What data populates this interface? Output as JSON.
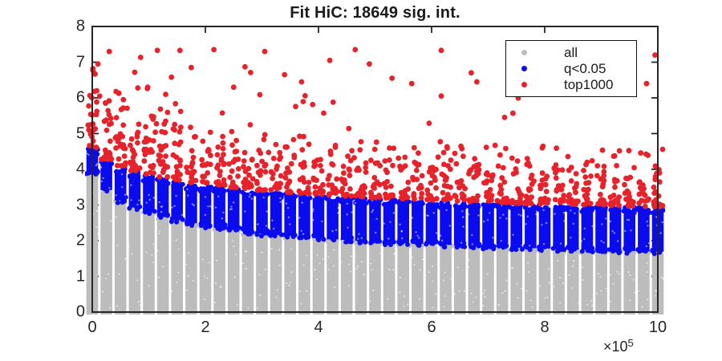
{
  "figure": {
    "background": "#ffffff",
    "axis_color": "#262626",
    "text_color": "#1a1a1a"
  },
  "chart_data": {
    "type": "scatter",
    "title": "Fit HiC: 18649 sig. int.",
    "xlabel": "",
    "ylabel": "",
    "xlim": [
      0,
      1000000
    ],
    "ylim": [
      0,
      8
    ],
    "grid": false,
    "box": true,
    "x_tick_values": [
      0,
      200000,
      400000,
      600000,
      800000,
      1000000
    ],
    "x_tick_labels": [
      "0",
      "2",
      "4",
      "6",
      "8",
      "10"
    ],
    "x_multiplier": {
      "base": "×10",
      "exponent": "5"
    },
    "y_tick_values": [
      0,
      1,
      2,
      3,
      4,
      5,
      6,
      7,
      8
    ],
    "y_tick_labels": [
      "0",
      "1",
      "2",
      "3",
      "4",
      "5",
      "6",
      "7",
      "8"
    ],
    "legend": {
      "position": "inside-top-right",
      "border": true,
      "entries": [
        {
          "label": "all",
          "color": "#bcbcbc",
          "marker": "filled-circle"
        },
        {
          "label": "q<0.05",
          "color": "#0b0bf0",
          "marker": "filled-circle"
        },
        {
          "label": "top1000",
          "color": "#e8222a",
          "marker": "filled-circle"
        }
      ]
    },
    "columns": {
      "count": 41,
      "x_start": 0,
      "x_step": 25000
    },
    "series": [
      {
        "name": "all",
        "color": "#bcbcbc",
        "marker": "filled-circle",
        "description": "dense vertical columns of points from y=0 up to a decaying upper envelope",
        "lower": 0,
        "upper_envelope": [
          3.85,
          3.42,
          3.13,
          2.93,
          2.79,
          2.66,
          2.57,
          2.49,
          2.42,
          2.36,
          2.3,
          2.25,
          2.2,
          2.16,
          2.13,
          2.1,
          2.07,
          2.04,
          2.02,
          2.0,
          1.97,
          1.95,
          1.93,
          1.91,
          1.9,
          1.88,
          1.86,
          1.85,
          1.83,
          1.82,
          1.8,
          1.79,
          1.78,
          1.76,
          1.75,
          1.74,
          1.73,
          1.72,
          1.71,
          1.7,
          1.69
        ]
      },
      {
        "name": "q<0.05",
        "color": "#0b0bf0",
        "marker": "filled-circle",
        "description": "dense band of significant interactions sitting on top of the gray envelope",
        "lower_envelope": [
          3.85,
          3.42,
          3.13,
          2.93,
          2.79,
          2.66,
          2.57,
          2.49,
          2.42,
          2.36,
          2.3,
          2.25,
          2.2,
          2.16,
          2.13,
          2.1,
          2.07,
          2.04,
          2.02,
          2.0,
          1.97,
          1.95,
          1.93,
          1.91,
          1.9,
          1.88,
          1.86,
          1.85,
          1.83,
          1.82,
          1.8,
          1.79,
          1.78,
          1.76,
          1.75,
          1.74,
          1.73,
          1.72,
          1.71,
          1.7,
          1.69
        ],
        "upper_envelope": [
          4.55,
          4.22,
          4.03,
          3.9,
          3.8,
          3.71,
          3.64,
          3.57,
          3.52,
          3.47,
          3.43,
          3.39,
          3.35,
          3.32,
          3.29,
          3.26,
          3.24,
          3.21,
          3.19,
          3.17,
          3.15,
          3.13,
          3.11,
          3.1,
          3.08,
          3.06,
          3.05,
          3.03,
          3.02,
          3.01,
          2.99,
          2.98,
          2.97,
          2.96,
          2.95,
          2.94,
          2.93,
          2.92,
          2.91,
          2.9,
          2.89
        ]
      },
      {
        "name": "top1000",
        "color": "#e8222a",
        "marker": "filled-circle",
        "count": 1000,
        "description": "top-1000 interactions: dense band just above the blue envelope plus sparse high outliers",
        "dense_band_height": 1.1,
        "outliers": [
          [
            5000,
            6.67
          ],
          [
            8000,
            6.2
          ],
          [
            10000,
            6.95
          ],
          [
            13000,
            6.05
          ],
          [
            30000,
            7.3
          ],
          [
            42000,
            6.18
          ],
          [
            55000,
            5.95
          ],
          [
            75000,
            6.72
          ],
          [
            98000,
            6.3
          ],
          [
            115000,
            7.33
          ],
          [
            140000,
            6.58
          ],
          [
            155000,
            7.33
          ],
          [
            175000,
            6.85
          ],
          [
            215000,
            7.35
          ],
          [
            250000,
            6.3
          ],
          [
            270000,
            6.87
          ],
          [
            305000,
            7.3
          ],
          [
            340000,
            6.65
          ],
          [
            370000,
            6.45
          ],
          [
            420000,
            7.05
          ],
          [
            465000,
            7.35
          ],
          [
            490000,
            6.95
          ],
          [
            530000,
            6.55
          ],
          [
            565000,
            6.4
          ],
          [
            617000,
            7.33
          ],
          [
            670000,
            6.7
          ],
          [
            680000,
            6.45
          ],
          [
            820000,
            7.2
          ],
          [
            860000,
            6.45
          ],
          [
            930000,
            7.35
          ],
          [
            940000,
            7.05
          ],
          [
            980000,
            6.4
          ],
          [
            995000,
            7.2
          ]
        ]
      }
    ]
  }
}
